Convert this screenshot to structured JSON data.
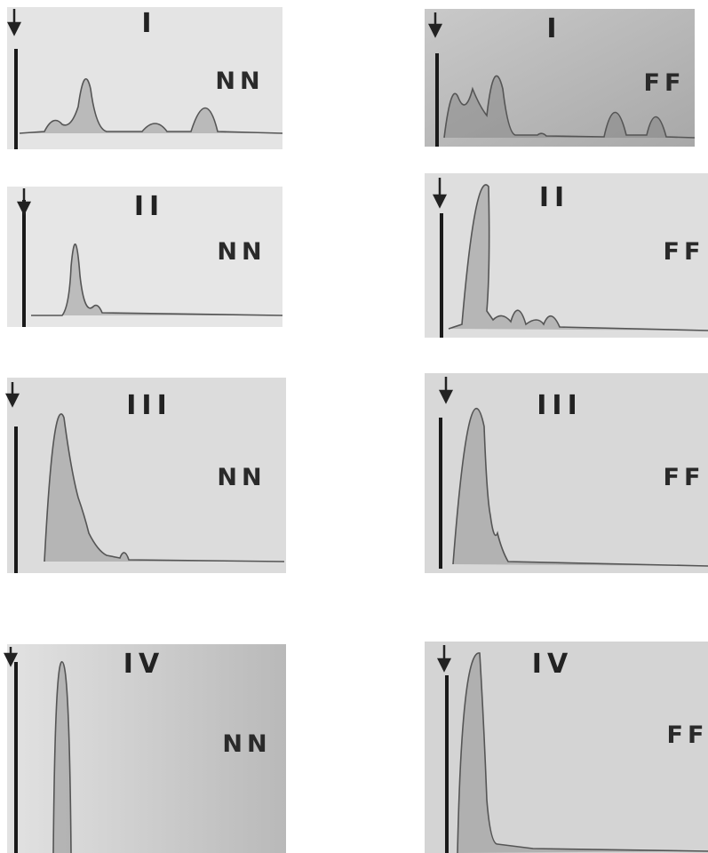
{
  "panels": [
    {
      "numeral": "I",
      "label": "NN"
    },
    {
      "numeral": "II",
      "label": "NN"
    },
    {
      "numeral": "III",
      "label": "NN"
    },
    {
      "numeral": "IV",
      "label": "NN"
    },
    {
      "numeral": "I",
      "label": "FF"
    },
    {
      "numeral": "II",
      "label": "FF"
    },
    {
      "numeral": "III",
      "label": "FF"
    },
    {
      "numeral": "IV",
      "label": "FF"
    }
  ]
}
